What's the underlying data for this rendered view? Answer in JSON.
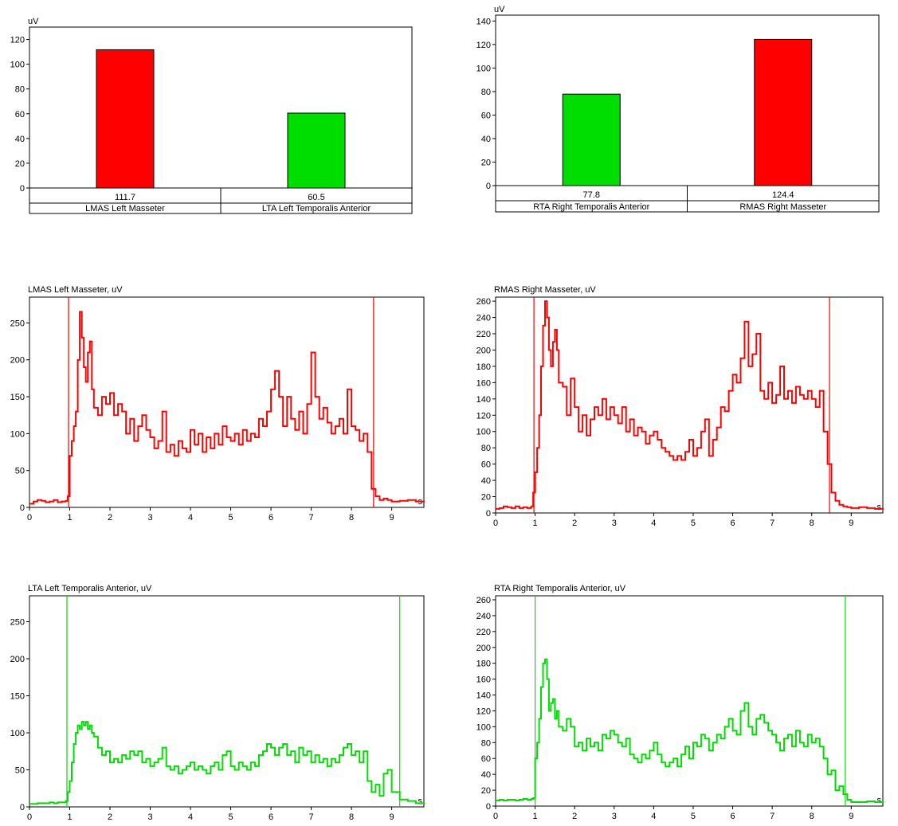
{
  "chart_data": [
    {
      "type": "bar",
      "ylabel": "uV",
      "ylim": [
        0,
        130
      ],
      "yticks": [
        0,
        20,
        40,
        60,
        80,
        100,
        120
      ],
      "categories": [
        "LMAS Left Masseter",
        "LTA Left Temporalis Anterior"
      ],
      "values": [
        111.7,
        60.5
      ],
      "value_labels": [
        "111.7",
        "60.5"
      ],
      "colors": [
        "#ff0000",
        "#00dd00"
      ]
    },
    {
      "type": "bar",
      "ylabel": "uV",
      "ylim": [
        0,
        145
      ],
      "yticks": [
        0,
        20,
        40,
        60,
        80,
        100,
        120,
        140
      ],
      "categories": [
        "RTA Right Temporalis Anterior",
        "RMAS Right Masseter"
      ],
      "values": [
        77.8,
        124.4
      ],
      "value_labels": [
        "77.8",
        "124.4"
      ],
      "colors": [
        "#00dd00",
        "#ff0000"
      ]
    },
    {
      "type": "line",
      "title": "LMAS Left Masseter, uV",
      "xunit": "s",
      "xlim": [
        0,
        9.8
      ],
      "xticks": [
        0,
        1,
        2,
        3,
        4,
        5,
        6,
        7,
        8,
        9
      ],
      "ylim": [
        0,
        285
      ],
      "yticks": [
        0,
        50,
        100,
        150,
        200,
        250
      ],
      "markers": [
        0.97,
        8.55
      ],
      "color": "#ff0000",
      "x": [
        0,
        0.1,
        0.2,
        0.3,
        0.4,
        0.5,
        0.6,
        0.7,
        0.8,
        0.9,
        0.95,
        1.0,
        1.05,
        1.1,
        1.15,
        1.2,
        1.25,
        1.3,
        1.35,
        1.4,
        1.45,
        1.5,
        1.55,
        1.6,
        1.7,
        1.8,
        1.9,
        2.0,
        2.1,
        2.2,
        2.3,
        2.4,
        2.5,
        2.6,
        2.7,
        2.8,
        2.9,
        3.0,
        3.1,
        3.2,
        3.3,
        3.4,
        3.5,
        3.6,
        3.7,
        3.8,
        3.9,
        4.0,
        4.1,
        4.2,
        4.3,
        4.4,
        4.5,
        4.6,
        4.7,
        4.8,
        4.9,
        5.0,
        5.1,
        5.2,
        5.3,
        5.4,
        5.5,
        5.6,
        5.7,
        5.8,
        5.9,
        6.0,
        6.1,
        6.2,
        6.3,
        6.4,
        6.5,
        6.6,
        6.7,
        6.8,
        6.9,
        7.0,
        7.1,
        7.2,
        7.3,
        7.4,
        7.5,
        7.6,
        7.7,
        7.8,
        7.9,
        8.0,
        8.1,
        8.2,
        8.3,
        8.4,
        8.5,
        8.6,
        8.7,
        8.8,
        8.9,
        9.0,
        9.2,
        9.4,
        9.6,
        9.8
      ],
      "y": [
        5,
        8,
        10,
        9,
        7,
        8,
        10,
        7,
        8,
        9,
        15,
        70,
        90,
        110,
        130,
        200,
        265,
        230,
        190,
        170,
        210,
        225,
        160,
        135,
        125,
        150,
        140,
        155,
        125,
        140,
        130,
        100,
        120,
        90,
        110,
        125,
        105,
        95,
        80,
        90,
        130,
        75,
        85,
        70,
        90,
        80,
        75,
        105,
        85,
        100,
        75,
        95,
        80,
        100,
        85,
        110,
        95,
        90,
        100,
        85,
        105,
        90,
        100,
        95,
        120,
        110,
        130,
        160,
        185,
        150,
        110,
        150,
        120,
        105,
        130,
        100,
        140,
        210,
        150,
        120,
        135,
        115,
        100,
        110,
        120,
        100,
        160,
        110,
        105,
        90,
        100,
        75,
        25,
        15,
        10,
        12,
        10,
        8,
        9,
        10,
        8,
        9
      ]
    },
    {
      "type": "line",
      "title": "RMAS Right Masseter, uV",
      "xunit": "s",
      "xlim": [
        0,
        9.8
      ],
      "xticks": [
        0,
        1,
        2,
        3,
        4,
        5,
        6,
        7,
        8,
        9
      ],
      "ylim": [
        0,
        265
      ],
      "yticks": [
        0,
        20,
        40,
        60,
        80,
        100,
        120,
        140,
        160,
        180,
        200,
        220,
        240,
        260
      ],
      "markers": [
        0.97,
        8.45
      ],
      "color": "#ff0000",
      "x": [
        0,
        0.1,
        0.2,
        0.3,
        0.4,
        0.5,
        0.6,
        0.7,
        0.8,
        0.9,
        0.95,
        1.0,
        1.05,
        1.1,
        1.15,
        1.2,
        1.25,
        1.3,
        1.35,
        1.4,
        1.45,
        1.5,
        1.55,
        1.6,
        1.7,
        1.8,
        1.9,
        2.0,
        2.1,
        2.2,
        2.3,
        2.4,
        2.5,
        2.6,
        2.7,
        2.8,
        2.9,
        3.0,
        3.1,
        3.2,
        3.3,
        3.4,
        3.5,
        3.6,
        3.7,
        3.8,
        3.9,
        4.0,
        4.1,
        4.2,
        4.3,
        4.4,
        4.5,
        4.6,
        4.7,
        4.8,
        4.9,
        5.0,
        5.1,
        5.2,
        5.3,
        5.4,
        5.5,
        5.6,
        5.7,
        5.8,
        5.9,
        6.0,
        6.1,
        6.2,
        6.3,
        6.4,
        6.5,
        6.6,
        6.7,
        6.8,
        6.9,
        7.0,
        7.1,
        7.2,
        7.3,
        7.4,
        7.5,
        7.6,
        7.7,
        7.8,
        7.9,
        8.0,
        8.1,
        8.2,
        8.3,
        8.4,
        8.5,
        8.6,
        8.7,
        8.8,
        8.9,
        9.0,
        9.2,
        9.4,
        9.6,
        9.8
      ],
      "y": [
        5,
        6,
        8,
        7,
        6,
        8,
        6,
        7,
        6,
        8,
        25,
        50,
        80,
        120,
        180,
        230,
        260,
        240,
        200,
        180,
        210,
        225,
        200,
        160,
        155,
        120,
        165,
        130,
        100,
        120,
        95,
        115,
        130,
        120,
        140,
        115,
        130,
        120,
        110,
        130,
        100,
        115,
        95,
        105,
        100,
        85,
        95,
        100,
        90,
        80,
        75,
        70,
        65,
        70,
        65,
        75,
        90,
        70,
        80,
        100,
        115,
        70,
        90,
        105,
        130,
        125,
        150,
        170,
        160,
        190,
        235,
        180,
        195,
        220,
        150,
        140,
        160,
        135,
        145,
        180,
        140,
        150,
        135,
        155,
        145,
        140,
        150,
        140,
        130,
        150,
        100,
        60,
        25,
        15,
        10,
        8,
        7,
        6,
        7,
        6,
        5,
        6
      ]
    },
    {
      "type": "line",
      "title": "LTA Left Temporalis Anterior, uV",
      "xunit": "s",
      "xlim": [
        0,
        9.8
      ],
      "xticks": [
        0,
        1,
        2,
        3,
        4,
        5,
        6,
        7,
        8,
        9
      ],
      "ylim": [
        0,
        285
      ],
      "yticks": [
        0,
        50,
        100,
        150,
        200,
        250
      ],
      "markers": [
        0.93,
        9.2
      ],
      "color": "#00dd00",
      "x": [
        0,
        0.1,
        0.2,
        0.3,
        0.4,
        0.5,
        0.6,
        0.7,
        0.8,
        0.9,
        0.95,
        1.0,
        1.05,
        1.1,
        1.15,
        1.2,
        1.25,
        1.3,
        1.35,
        1.4,
        1.45,
        1.5,
        1.55,
        1.6,
        1.7,
        1.8,
        1.9,
        2.0,
        2.1,
        2.2,
        2.3,
        2.4,
        2.5,
        2.6,
        2.7,
        2.8,
        2.9,
        3.0,
        3.1,
        3.2,
        3.3,
        3.4,
        3.5,
        3.6,
        3.7,
        3.8,
        3.9,
        4.0,
        4.1,
        4.2,
        4.3,
        4.4,
        4.5,
        4.6,
        4.7,
        4.8,
        4.9,
        5.0,
        5.1,
        5.2,
        5.3,
        5.4,
        5.5,
        5.6,
        5.7,
        5.8,
        5.9,
        6.0,
        6.1,
        6.2,
        6.3,
        6.4,
        6.5,
        6.6,
        6.7,
        6.8,
        6.9,
        7.0,
        7.1,
        7.2,
        7.3,
        7.4,
        7.5,
        7.6,
        7.7,
        7.8,
        7.9,
        8.0,
        8.1,
        8.2,
        8.3,
        8.4,
        8.5,
        8.6,
        8.7,
        8.8,
        8.9,
        9.0,
        9.2,
        9.4,
        9.6,
        9.8
      ],
      "y": [
        4,
        4,
        5,
        5,
        5,
        6,
        5,
        6,
        6,
        8,
        20,
        35,
        60,
        85,
        100,
        110,
        105,
        115,
        110,
        115,
        105,
        110,
        100,
        95,
        80,
        70,
        75,
        60,
        65,
        60,
        70,
        65,
        75,
        70,
        75,
        60,
        65,
        55,
        60,
        65,
        80,
        55,
        50,
        55,
        45,
        50,
        55,
        60,
        50,
        55,
        50,
        45,
        55,
        60,
        50,
        70,
        75,
        55,
        50,
        60,
        55,
        50,
        60,
        55,
        70,
        75,
        85,
        80,
        70,
        80,
        85,
        70,
        75,
        60,
        80,
        70,
        75,
        60,
        70,
        60,
        65,
        55,
        65,
        60,
        70,
        80,
        85,
        70,
        75,
        60,
        75,
        35,
        20,
        30,
        15,
        45,
        50,
        20,
        10,
        8,
        5,
        6
      ]
    },
    {
      "type": "line",
      "title": "RTA Right Temporalis Anterior, uV",
      "xunit": "s",
      "xlim": [
        0,
        9.8
      ],
      "xticks": [
        0,
        1,
        2,
        3,
        4,
        5,
        6,
        7,
        8,
        9
      ],
      "ylim": [
        0,
        265
      ],
      "yticks": [
        0,
        20,
        40,
        60,
        80,
        100,
        120,
        140,
        160,
        180,
        200,
        220,
        240,
        260
      ],
      "markers": [
        1.0,
        8.85
      ],
      "color": "#00dd00",
      "x": [
        0,
        0.1,
        0.2,
        0.3,
        0.4,
        0.5,
        0.6,
        0.7,
        0.8,
        0.9,
        0.95,
        1.0,
        1.05,
        1.1,
        1.15,
        1.2,
        1.25,
        1.3,
        1.35,
        1.4,
        1.45,
        1.5,
        1.55,
        1.6,
        1.7,
        1.8,
        1.9,
        2.0,
        2.1,
        2.2,
        2.3,
        2.4,
        2.5,
        2.6,
        2.7,
        2.8,
        2.9,
        3.0,
        3.1,
        3.2,
        3.3,
        3.4,
        3.5,
        3.6,
        3.7,
        3.8,
        3.9,
        4.0,
        4.1,
        4.2,
        4.3,
        4.4,
        4.5,
        4.6,
        4.7,
        4.8,
        4.9,
        5.0,
        5.1,
        5.2,
        5.3,
        5.4,
        5.5,
        5.6,
        5.7,
        5.8,
        5.9,
        6.0,
        6.1,
        6.2,
        6.3,
        6.4,
        6.5,
        6.6,
        6.7,
        6.8,
        6.9,
        7.0,
        7.1,
        7.2,
        7.3,
        7.4,
        7.5,
        7.6,
        7.7,
        7.8,
        7.9,
        8.0,
        8.1,
        8.2,
        8.3,
        8.4,
        8.5,
        8.6,
        8.7,
        8.8,
        8.9,
        9.0,
        9.2,
        9.4,
        9.6,
        9.8
      ],
      "y": [
        7,
        8,
        7,
        8,
        8,
        7,
        8,
        9,
        8,
        9,
        10,
        60,
        80,
        110,
        150,
        180,
        185,
        160,
        120,
        130,
        135,
        110,
        120,
        100,
        95,
        110,
        100,
        75,
        80,
        70,
        85,
        75,
        80,
        70,
        90,
        85,
        95,
        90,
        80,
        75,
        85,
        65,
        60,
        55,
        65,
        60,
        70,
        80,
        65,
        55,
        50,
        55,
        60,
        50,
        65,
        75,
        60,
        80,
        75,
        90,
        85,
        70,
        80,
        90,
        85,
        100,
        110,
        95,
        90,
        120,
        130,
        100,
        90,
        110,
        115,
        105,
        95,
        90,
        80,
        70,
        85,
        90,
        75,
        95,
        80,
        75,
        90,
        80,
        85,
        75,
        60,
        40,
        45,
        20,
        25,
        15,
        8,
        5,
        5,
        6,
        5,
        6
      ]
    }
  ]
}
